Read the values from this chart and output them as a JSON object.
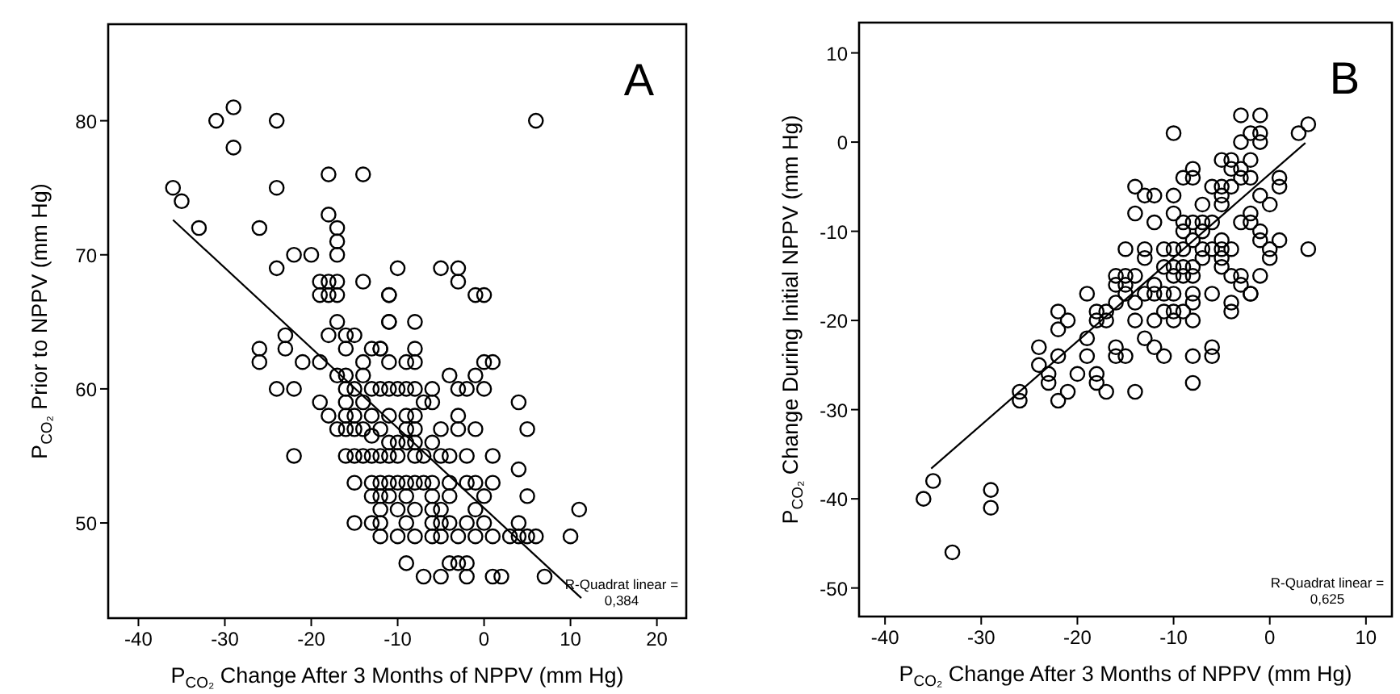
{
  "chart_data": [
    {
      "type": "scatter",
      "title": "A",
      "xlabel": "P$_{CO₂}$ Change After 3 Months of NPPV (mm Hg)",
      "ylabel": "P$_{CO₂}$ Prior to NPPV (mm Hg)",
      "xlim": [
        -43.5,
        23.4
      ],
      "xticks": [
        -40,
        -30,
        -20,
        -10,
        0,
        10,
        20
      ],
      "ylim": [
        42.9,
        87.2
      ],
      "yticks": [
        50,
        60,
        70,
        80
      ],
      "grid": false,
      "marker": "circle",
      "annotations": [
        "R-Quadrat linear =\n0,384"
      ],
      "series": [
        {
          "color": "#000000",
          "x": [
            -36,
            -35,
            -33,
            -31,
            -29,
            -29,
            -24,
            -24,
            -24,
            -26,
            -22,
            -20,
            -18,
            -14,
            -18,
            -17,
            -17,
            -17,
            -19,
            -18,
            -17,
            -19,
            -18,
            -17,
            -14,
            -11,
            -17,
            -11,
            -18,
            -16,
            -15,
            -23,
            -23,
            -26,
            -26,
            -21,
            -19,
            -16,
            -17,
            -16,
            -14,
            -14,
            -13,
            -12,
            -24,
            -22,
            -19,
            -18,
            -16,
            -15,
            -13,
            -12,
            -16,
            -14,
            -17,
            -16,
            -15,
            -14,
            -12,
            -16,
            -15,
            -13,
            -13,
            -22,
            -16,
            -15,
            -14,
            -13,
            -12,
            -15,
            -13,
            -12,
            -13,
            -12,
            -12,
            -15,
            -13,
            -12,
            6,
            -10,
            -5,
            -3,
            -3,
            -11,
            -1,
            0,
            -11,
            -8,
            -12,
            -9,
            -8,
            -8,
            -11,
            0,
            1,
            -11,
            -10,
            -9,
            -8,
            -6,
            -7,
            -6,
            -4,
            -3,
            -2,
            -1,
            0,
            4,
            5,
            -11,
            -9,
            -8,
            -9,
            -8,
            -5,
            -3,
            -1,
            -3,
            -11,
            -10,
            -9,
            -8,
            -6,
            -11,
            -10,
            -8,
            -7,
            -5,
            -4,
            -2,
            1,
            4,
            1,
            -1,
            -2,
            -4,
            -11,
            -10,
            -9,
            -8,
            -7,
            -6,
            -11,
            -9,
            -6,
            -4,
            0,
            5,
            -10,
            -8,
            -6,
            -5,
            -1,
            11,
            -12,
            -9,
            -6,
            -5,
            -4,
            -2,
            0,
            4,
            10,
            -10,
            -8,
            -6,
            -5,
            -3,
            -1,
            1,
            3,
            4,
            5,
            6,
            -9,
            -4,
            -3,
            -2,
            -7,
            -5,
            -2,
            1,
            2,
            7
          ],
          "values": [
            75,
            74,
            72,
            80,
            81,
            78,
            80,
            75,
            69,
            72,
            70,
            70,
            76,
            76,
            73,
            72,
            71,
            70,
            68,
            68,
            68,
            67,
            67,
            67,
            68,
            67,
            65,
            65,
            64,
            64,
            64,
            64,
            63,
            63,
            62,
            62,
            62,
            63,
            61,
            61,
            62,
            61,
            63,
            63,
            60,
            60,
            59,
            58,
            60,
            60,
            60,
            60,
            59,
            59,
            57,
            57,
            57,
            57,
            57,
            58,
            58,
            58,
            56.5,
            55,
            55,
            55,
            55,
            55,
            55,
            53,
            53,
            53,
            52,
            52,
            51,
            50,
            50,
            49,
            80,
            69,
            69,
            69,
            68,
            67,
            67,
            67,
            65,
            65,
            63,
            62,
            63,
            62,
            62,
            62,
            62,
            60,
            60,
            60,
            60,
            60,
            59,
            59,
            61,
            60,
            60,
            61,
            60,
            59,
            57,
            58,
            58,
            58,
            57,
            57,
            57,
            57,
            57,
            58,
            56,
            56,
            56,
            56,
            56,
            55,
            55,
            55,
            55,
            55,
            55,
            55,
            55,
            54,
            53,
            53,
            53,
            53,
            53,
            53,
            53,
            53,
            53,
            53,
            52,
            52,
            52,
            52,
            52,
            52,
            51,
            51,
            51,
            51,
            51,
            51,
            50,
            50,
            50,
            50,
            50,
            50,
            50,
            50,
            49,
            49,
            49,
            49,
            49,
            49,
            49,
            49,
            49,
            49,
            49,
            49,
            47,
            47,
            47,
            47,
            46,
            46,
            46,
            46,
            46,
            46
          ]
        },
        {
          "type": "line",
          "color": "#000000",
          "marker": "none",
          "x": [
            -36,
            11.25
          ],
          "values": [
            72.6,
            44.4
          ]
        }
      ]
    },
    {
      "type": "scatter",
      "title": "B",
      "xlabel": "P$_{CO₂}$ Change After 3 Months of NPPV (mm Hg)",
      "ylabel": "P$_{CO₂}$ Change During  Initial NPPV (mm Hg)",
      "xlim": [
        -42.7,
        12.7
      ],
      "xticks": [
        -40,
        -30,
        -20,
        -10,
        0,
        10
      ],
      "ylim": [
        -53.2,
        13.4
      ],
      "yticks": [
        -50,
        -40,
        -30,
        -20,
        -10,
        0,
        10
      ],
      "grid": false,
      "marker": "circle",
      "annotations": [
        "R-Quadrat linear =\n0,625"
      ],
      "series": [
        {
          "color": "#000000",
          "x": [
            -36,
            -35,
            -33,
            -29,
            -29,
            -26,
            -26,
            -24,
            -24,
            -23,
            -23,
            -22,
            -22,
            -21,
            -22,
            -22,
            -21,
            -20,
            -19,
            -18,
            -17,
            -18,
            -17,
            -19,
            -19,
            -18,
            -18,
            -17,
            -16,
            -16,
            -15,
            -16,
            -15,
            -14,
            -15,
            -14,
            -14,
            -13,
            -12,
            -12,
            -11,
            -15,
            -13,
            -13,
            -12,
            -13,
            -11,
            -16,
            -16,
            -15,
            -14,
            -12,
            -11,
            -10,
            -9,
            -10,
            -10,
            -9,
            -10,
            -8,
            -11,
            -8,
            -8,
            -6,
            -4,
            -4,
            -2,
            -8,
            -6,
            -6,
            -8,
            -10,
            -14,
            -12,
            -14,
            -13,
            -12,
            -10,
            -10,
            -9,
            -9,
            -8,
            -7,
            -6,
            -7,
            -8,
            -11,
            -9,
            -10,
            -8,
            -7,
            -6,
            -5,
            -5,
            -5,
            -7,
            -9,
            -8,
            -8,
            -6,
            -7,
            -5,
            -5,
            -5,
            -4,
            -3,
            -3,
            -4,
            -4,
            -2,
            -2,
            -1,
            0,
            1,
            1,
            -2,
            -3,
            -2,
            -1,
            -1,
            0,
            1,
            0,
            -3,
            -3,
            -1,
            -2,
            -3,
            -1,
            -2,
            -1,
            -1,
            -3,
            -5,
            3,
            4,
            4,
            -4,
            -4,
            -5,
            -8,
            -10,
            -9
          ],
          "values": [
            -40,
            -38,
            -46,
            -39,
            -41,
            -28,
            -29,
            -23,
            -25,
            -26,
            -27,
            -19,
            -21,
            -20,
            -24,
            -29,
            -28,
            -26,
            -17,
            -19,
            -19,
            -20,
            -20,
            -22,
            -24,
            -26,
            -27,
            -28,
            -18,
            -15,
            -15,
            -16,
            -16,
            -15,
            -17,
            -18,
            -20,
            -17,
            -17,
            -20,
            -17,
            -12,
            -12,
            -13,
            -16,
            -22,
            -24,
            -23,
            -24,
            -24,
            -28,
            -23,
            -12,
            -12,
            -12,
            -14,
            -19,
            -19,
            -20,
            -20,
            -19,
            -15,
            -17,
            -17,
            -18,
            -19,
            -17,
            -24,
            -23,
            -24,
            -27,
            1,
            -8,
            -9,
            -5,
            -6,
            -6,
            -6,
            -8,
            -9,
            -10,
            -9,
            -9,
            -9,
            -10,
            -11,
            -14,
            -14,
            -15,
            -14,
            -13,
            -12,
            -12,
            -13,
            -14,
            -12,
            -4,
            -4,
            -3,
            -5,
            -7,
            -7,
            -6,
            -5,
            -5,
            -4,
            -3,
            -3,
            -2,
            -2,
            -4,
            -6,
            -7,
            -4,
            -5,
            -8,
            -9,
            -9,
            -10,
            -11,
            -12,
            -11,
            -13,
            -15,
            -16,
            -15,
            -17,
            3,
            3,
            1,
            1,
            0,
            0,
            -2,
            1,
            2,
            -12,
            -12,
            -15,
            -11,
            -18,
            -17,
            -15
          ]
        },
        {
          "type": "line",
          "color": "#000000",
          "marker": "none",
          "x": [
            -35.2,
            3.7
          ],
          "values": [
            -36.6,
            -0.1
          ]
        }
      ]
    }
  ]
}
